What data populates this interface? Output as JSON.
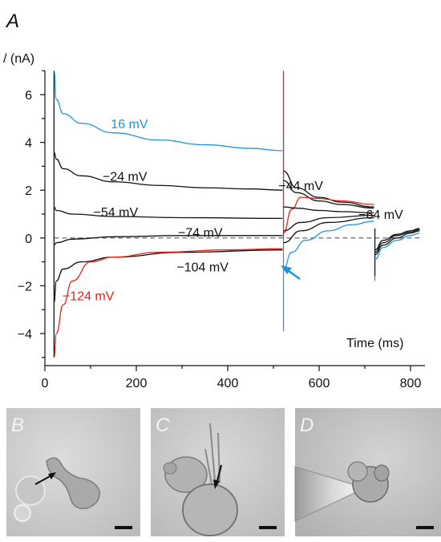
{
  "panel_a_label": "A",
  "chart_data": {
    "type": "line",
    "ylabel": "/ (nA)",
    "xlabel": "Time (ms)",
    "xlim": [
      0,
      800
    ],
    "ylim": [
      -5,
      7
    ],
    "x_ticks": [
      0,
      200,
      400,
      600,
      800
    ],
    "y_ticks": [
      -4,
      -2,
      0,
      2,
      4,
      6
    ],
    "zero_line": "dashed",
    "colors": {
      "blue": "#1f96d8",
      "red": "#e8221c",
      "black": "#111111",
      "dashed": "#777777"
    },
    "series": [
      {
        "name": "16 mV",
        "color": "#1f96d8",
        "x": [
          20,
          25,
          40,
          80,
          150,
          250,
          350,
          450,
          520
        ],
        "y": [
          7.0,
          5.8,
          5.2,
          4.8,
          4.4,
          4.1,
          3.9,
          3.75,
          3.65
        ]
      },
      {
        "name": "−24 mV",
        "color": "#111111",
        "x": [
          20,
          25,
          40,
          80,
          150,
          250,
          350,
          450,
          520
        ],
        "y": [
          3.6,
          3.3,
          2.9,
          2.6,
          2.35,
          2.2,
          2.1,
          2.05,
          2.0
        ]
      },
      {
        "name": "−54 mV",
        "color": "#111111",
        "x": [
          20,
          25,
          60,
          150,
          300,
          520
        ],
        "y": [
          1.3,
          1.15,
          1.0,
          0.9,
          0.85,
          0.82
        ]
      },
      {
        "name": "−74 mV",
        "color": "#111111",
        "x": [
          20,
          25,
          60,
          150,
          300,
          520
        ],
        "y": [
          -0.3,
          -0.2,
          -0.05,
          0.05,
          0.1,
          0.1
        ]
      },
      {
        "name": "−104 mV",
        "color": "#111111",
        "x": [
          20,
          25,
          40,
          80,
          150,
          300,
          520
        ],
        "y": [
          -2.7,
          -1.8,
          -1.3,
          -1.0,
          -0.8,
          -0.6,
          -0.5
        ]
      },
      {
        "name": "−124 mV",
        "color": "#e8221c",
        "x": [
          20,
          25,
          40,
          60,
          100,
          150,
          250,
          400,
          520
        ],
        "y": [
          -5.0,
          -4.0,
          -2.8,
          -1.8,
          -1.0,
          -0.8,
          -0.6,
          -0.5,
          -0.45
        ]
      }
    ],
    "tail_traces": [
      {
        "color": "#111111",
        "x": [
          522,
          550,
          600,
          650,
          720
        ],
        "y": [
          2.8,
          2.1,
          1.7,
          1.5,
          1.3
        ]
      },
      {
        "color": "#111111",
        "x": [
          522,
          550,
          600,
          650,
          720
        ],
        "y": [
          2.4,
          1.9,
          1.55,
          1.4,
          1.25
        ]
      },
      {
        "color": "#e8221c",
        "x": [
          522,
          540,
          560,
          600,
          650,
          720
        ],
        "y": [
          0.2,
          1.2,
          1.7,
          1.65,
          1.55,
          1.4
        ]
      },
      {
        "color": "#111111",
        "x": [
          522,
          550,
          600,
          650,
          720
        ],
        "y": [
          1.3,
          1.25,
          1.15,
          1.1,
          1.05
        ]
      },
      {
        "color": "#111111",
        "x": [
          522,
          560,
          620,
          720
        ],
        "y": [
          0.3,
          0.65,
          0.85,
          0.95
        ]
      },
      {
        "color": "#111111",
        "x": [
          522,
          560,
          620,
          720
        ],
        "y": [
          -0.2,
          0.3,
          0.65,
          0.85
        ]
      },
      {
        "color": "#1f96d8",
        "x": [
          522,
          540,
          570,
          620,
          670,
          720
        ],
        "y": [
          -1.3,
          -0.6,
          -0.1,
          0.3,
          0.55,
          0.7
        ]
      },
      {
        "color": "#111111",
        "x": [
          722,
          740,
          770,
          800,
          820
        ],
        "y": [
          -0.7,
          -0.3,
          0.0,
          0.2,
          0.3
        ]
      },
      {
        "color": "#111111",
        "x": [
          722,
          740,
          770,
          800,
          820
        ],
        "y": [
          -0.6,
          -0.2,
          0.1,
          0.25,
          0.35
        ]
      },
      {
        "color": "#111111",
        "x": [
          722,
          740,
          770,
          800,
          820
        ],
        "y": [
          -0.5,
          -0.1,
          0.15,
          0.3,
          0.4
        ]
      },
      {
        "color": "#1f96d8",
        "x": [
          722,
          740,
          770,
          800,
          820
        ],
        "y": [
          -0.9,
          -0.4,
          -0.1,
          0.1,
          0.2
        ]
      }
    ],
    "annotations": [
      {
        "text": "16 mV",
        "color": "#1f96d8",
        "x": 185,
        "y": 4.8
      },
      {
        "text": "−24 mV",
        "color": "#111111",
        "x": 175,
        "y": 2.6
      },
      {
        "text": "−54 mV",
        "color": "#111111",
        "x": 155,
        "y": 1.1
      },
      {
        "text": "−74 mV",
        "color": "#111111",
        "x": 340,
        "y": 0.25
      },
      {
        "text": "−104 mV",
        "color": "#111111",
        "x": 345,
        "y": -1.2
      },
      {
        "text": "−124 mV",
        "color": "#e8221c",
        "x": 95,
        "y": -2.4
      },
      {
        "text": "−44 mV",
        "color": "#111111",
        "x": 560,
        "y": 2.2
      },
      {
        "text": "−64 mV",
        "color": "#111111",
        "x": 735,
        "y": 1.0
      }
    ]
  },
  "photos": [
    {
      "label": "B",
      "description_arrow": "black"
    },
    {
      "label": "C",
      "description_arrow": "black"
    },
    {
      "label": "D",
      "description_arrow": "none"
    }
  ]
}
